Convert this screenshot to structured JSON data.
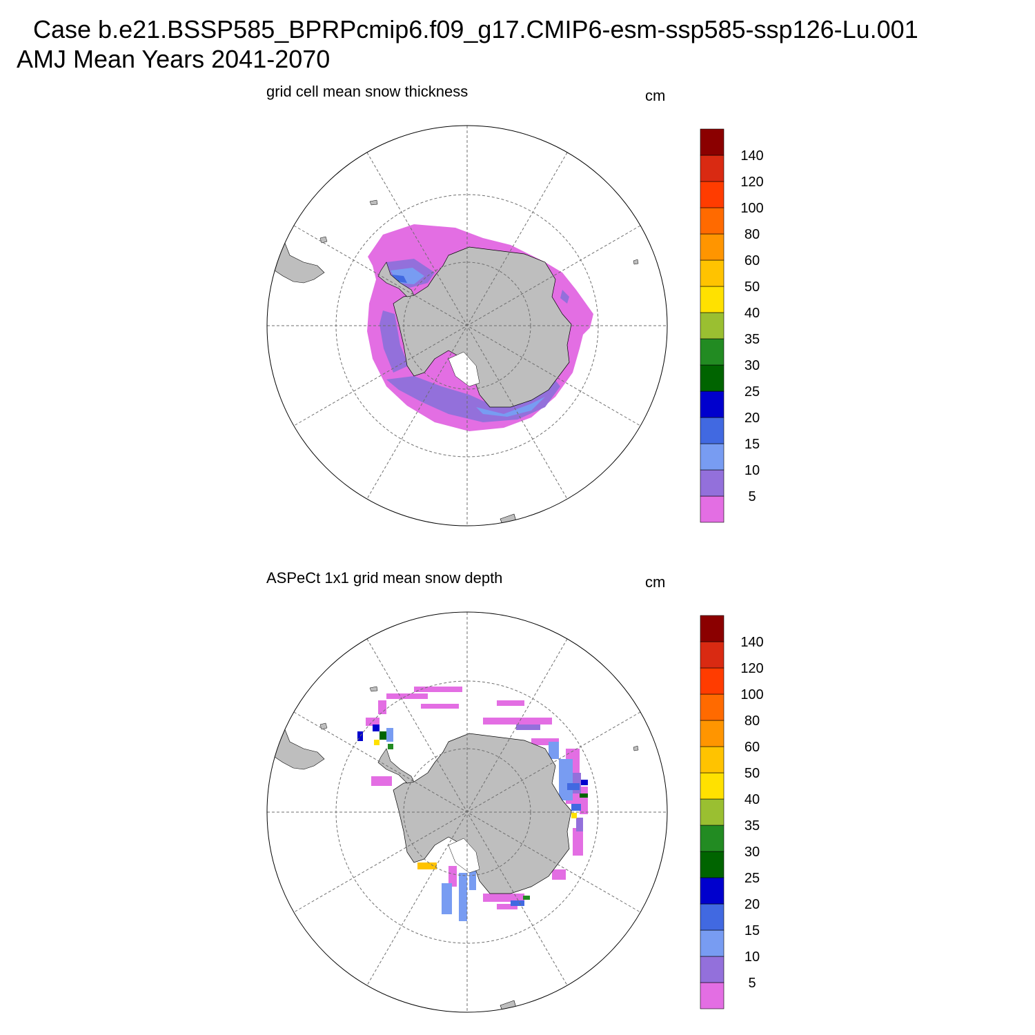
{
  "header": {
    "case_title": "Case b.e21.BSSP585_BPRPcmip6.f09_g17.CMIP6-esm-ssp585-ssp126-Lu.001",
    "period_title": "AMJ Mean   Years 2041-2070"
  },
  "panels": [
    {
      "title": "grid cell mean snow thickness",
      "units": "cm",
      "field": "model"
    },
    {
      "title": "ASPeCt 1x1 grid mean snow depth",
      "units": "cm",
      "field": "observations"
    }
  ],
  "colorbar": {
    "labels": [
      "5",
      "10",
      "15",
      "20",
      "25",
      "30",
      "35",
      "40",
      "50",
      "60",
      "80",
      "100",
      "120",
      "140"
    ],
    "colors": [
      "#e36ee3",
      "#9370db",
      "#789cf2",
      "#4169e1",
      "#0000cd",
      "#006400",
      "#228b22",
      "#9abf31",
      "#ffe100",
      "#ffc300",
      "#ff9500",
      "#ff6a00",
      "#ff3c00",
      "#d92a12",
      "#8b0000"
    ]
  },
  "colors": {
    "land": "#bebebe",
    "grid": "#6e6e6e"
  }
}
